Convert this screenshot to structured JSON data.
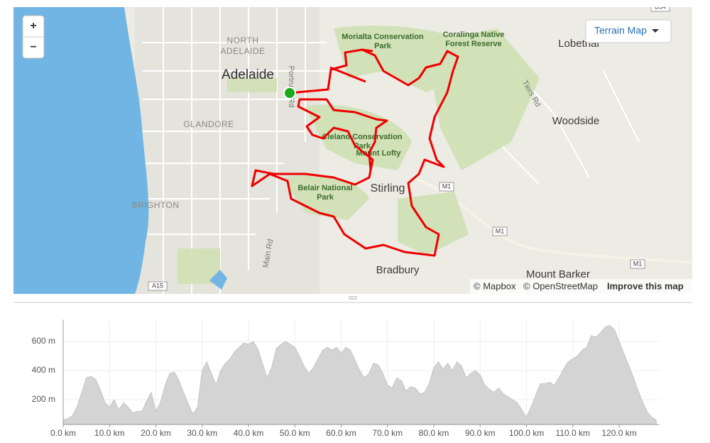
{
  "map": {
    "labels": [
      "NORTH",
      "ADELAIDE",
      "Adelaide",
      "GLANDORE",
      "BRIGHTON",
      "Stirling",
      "Bradbury",
      "Woodside",
      "Lobethal",
      "Mount Barker",
      "Morialta Conservation",
      "Park",
      "Coralinga Native",
      "Forest Reserve",
      "Cleland Conservation",
      "Park",
      "Mount Lofty",
      "Belair National",
      "Park",
      "Main Rd",
      "Tiers Rd",
      "Portrush Rd"
    ],
    "shields": [
      "M1",
      "M1",
      "M1",
      "A15",
      "B34"
    ],
    "zoom": [
      "+",
      "−"
    ],
    "style_button": "Terrain Map",
    "attribution": [
      "© Mapbox",
      "© OpenStreetMap",
      "Improve this map"
    ]
  },
  "chart_data": {
    "type": "area",
    "color": "#d4d4d4",
    "grid": true,
    "x": [
      0,
      1,
      2,
      3,
      4,
      5,
      6,
      7,
      8,
      9,
      10,
      11,
      12,
      13,
      14,
      15,
      16,
      17,
      18,
      19,
      20,
      21,
      22,
      23,
      24,
      25,
      26,
      27,
      28,
      29,
      30,
      31,
      32,
      33,
      34,
      35,
      36,
      37,
      38,
      39,
      40,
      41,
      42,
      43,
      44,
      45,
      46,
      47,
      48,
      49,
      50,
      51,
      52,
      53,
      54,
      55,
      56,
      57,
      58,
      59,
      60,
      61,
      62,
      63,
      64,
      65,
      66,
      67,
      68,
      69,
      70,
      71,
      72,
      73,
      74,
      75,
      76,
      77,
      78,
      79,
      80,
      81,
      82,
      83,
      84,
      85,
      86,
      87,
      88,
      89,
      90,
      91,
      92,
      93,
      94,
      95,
      96,
      97,
      98,
      99,
      100,
      101,
      102,
      103,
      104,
      105,
      106,
      107,
      108,
      109,
      110,
      111,
      112,
      113,
      114,
      115,
      116,
      117,
      118,
      119,
      120,
      121,
      122,
      123,
      124,
      125,
      126,
      127,
      128
    ],
    "values": [
      60,
      70,
      90,
      150,
      250,
      350,
      360,
      340,
      270,
      180,
      150,
      200,
      130,
      180,
      150,
      110,
      120,
      120,
      190,
      250,
      120,
      180,
      300,
      380,
      390,
      330,
      250,
      170,
      100,
      150,
      400,
      460,
      380,
      300,
      400,
      450,
      480,
      530,
      560,
      590,
      580,
      600,
      550,
      450,
      350,
      420,
      550,
      580,
      600,
      580,
      560,
      500,
      430,
      380,
      420,
      480,
      540,
      560,
      540,
      560,
      520,
      560,
      540,
      470,
      400,
      350,
      380,
      450,
      440,
      380,
      300,
      280,
      350,
      330,
      260,
      290,
      280,
      240,
      250,
      310,
      420,
      460,
      410,
      450,
      400,
      460,
      430,
      350,
      380,
      400,
      370,
      300,
      270,
      250,
      280,
      240,
      220,
      200,
      180,
      130,
      80,
      150,
      230,
      310,
      310,
      320,
      300,
      350,
      410,
      460,
      480,
      500,
      540,
      560,
      640,
      630,
      660,
      700,
      710,
      680,
      600,
      520,
      440,
      360,
      270,
      190,
      120,
      80,
      60
    ],
    "xlim": [
      0,
      128.7
    ],
    "ylim": [
      30,
      750
    ],
    "xticks": [
      {
        "value": 0,
        "label": "0.0 km"
      },
      {
        "value": 10,
        "label": "10.0 km"
      },
      {
        "value": 20,
        "label": "20.0 km"
      },
      {
        "value": 30,
        "label": "30.0 km"
      },
      {
        "value": 40,
        "label": "40.0 km"
      },
      {
        "value": 50,
        "label": "50.0 km"
      },
      {
        "value": 60,
        "label": "60.0 km"
      },
      {
        "value": 70,
        "label": "70.0 km"
      },
      {
        "value": 80,
        "label": "80.0 km"
      },
      {
        "value": 90,
        "label": "90.0 km"
      },
      {
        "value": 100,
        "label": "100.0 km"
      },
      {
        "value": 110,
        "label": "110.0 km"
      },
      {
        "value": 120,
        "label": "120.0 km"
      }
    ],
    "yticks": [
      {
        "value": 200,
        "label": "200 m"
      },
      {
        "value": 400,
        "label": "400 m"
      },
      {
        "value": 600,
        "label": "600 m"
      }
    ]
  }
}
